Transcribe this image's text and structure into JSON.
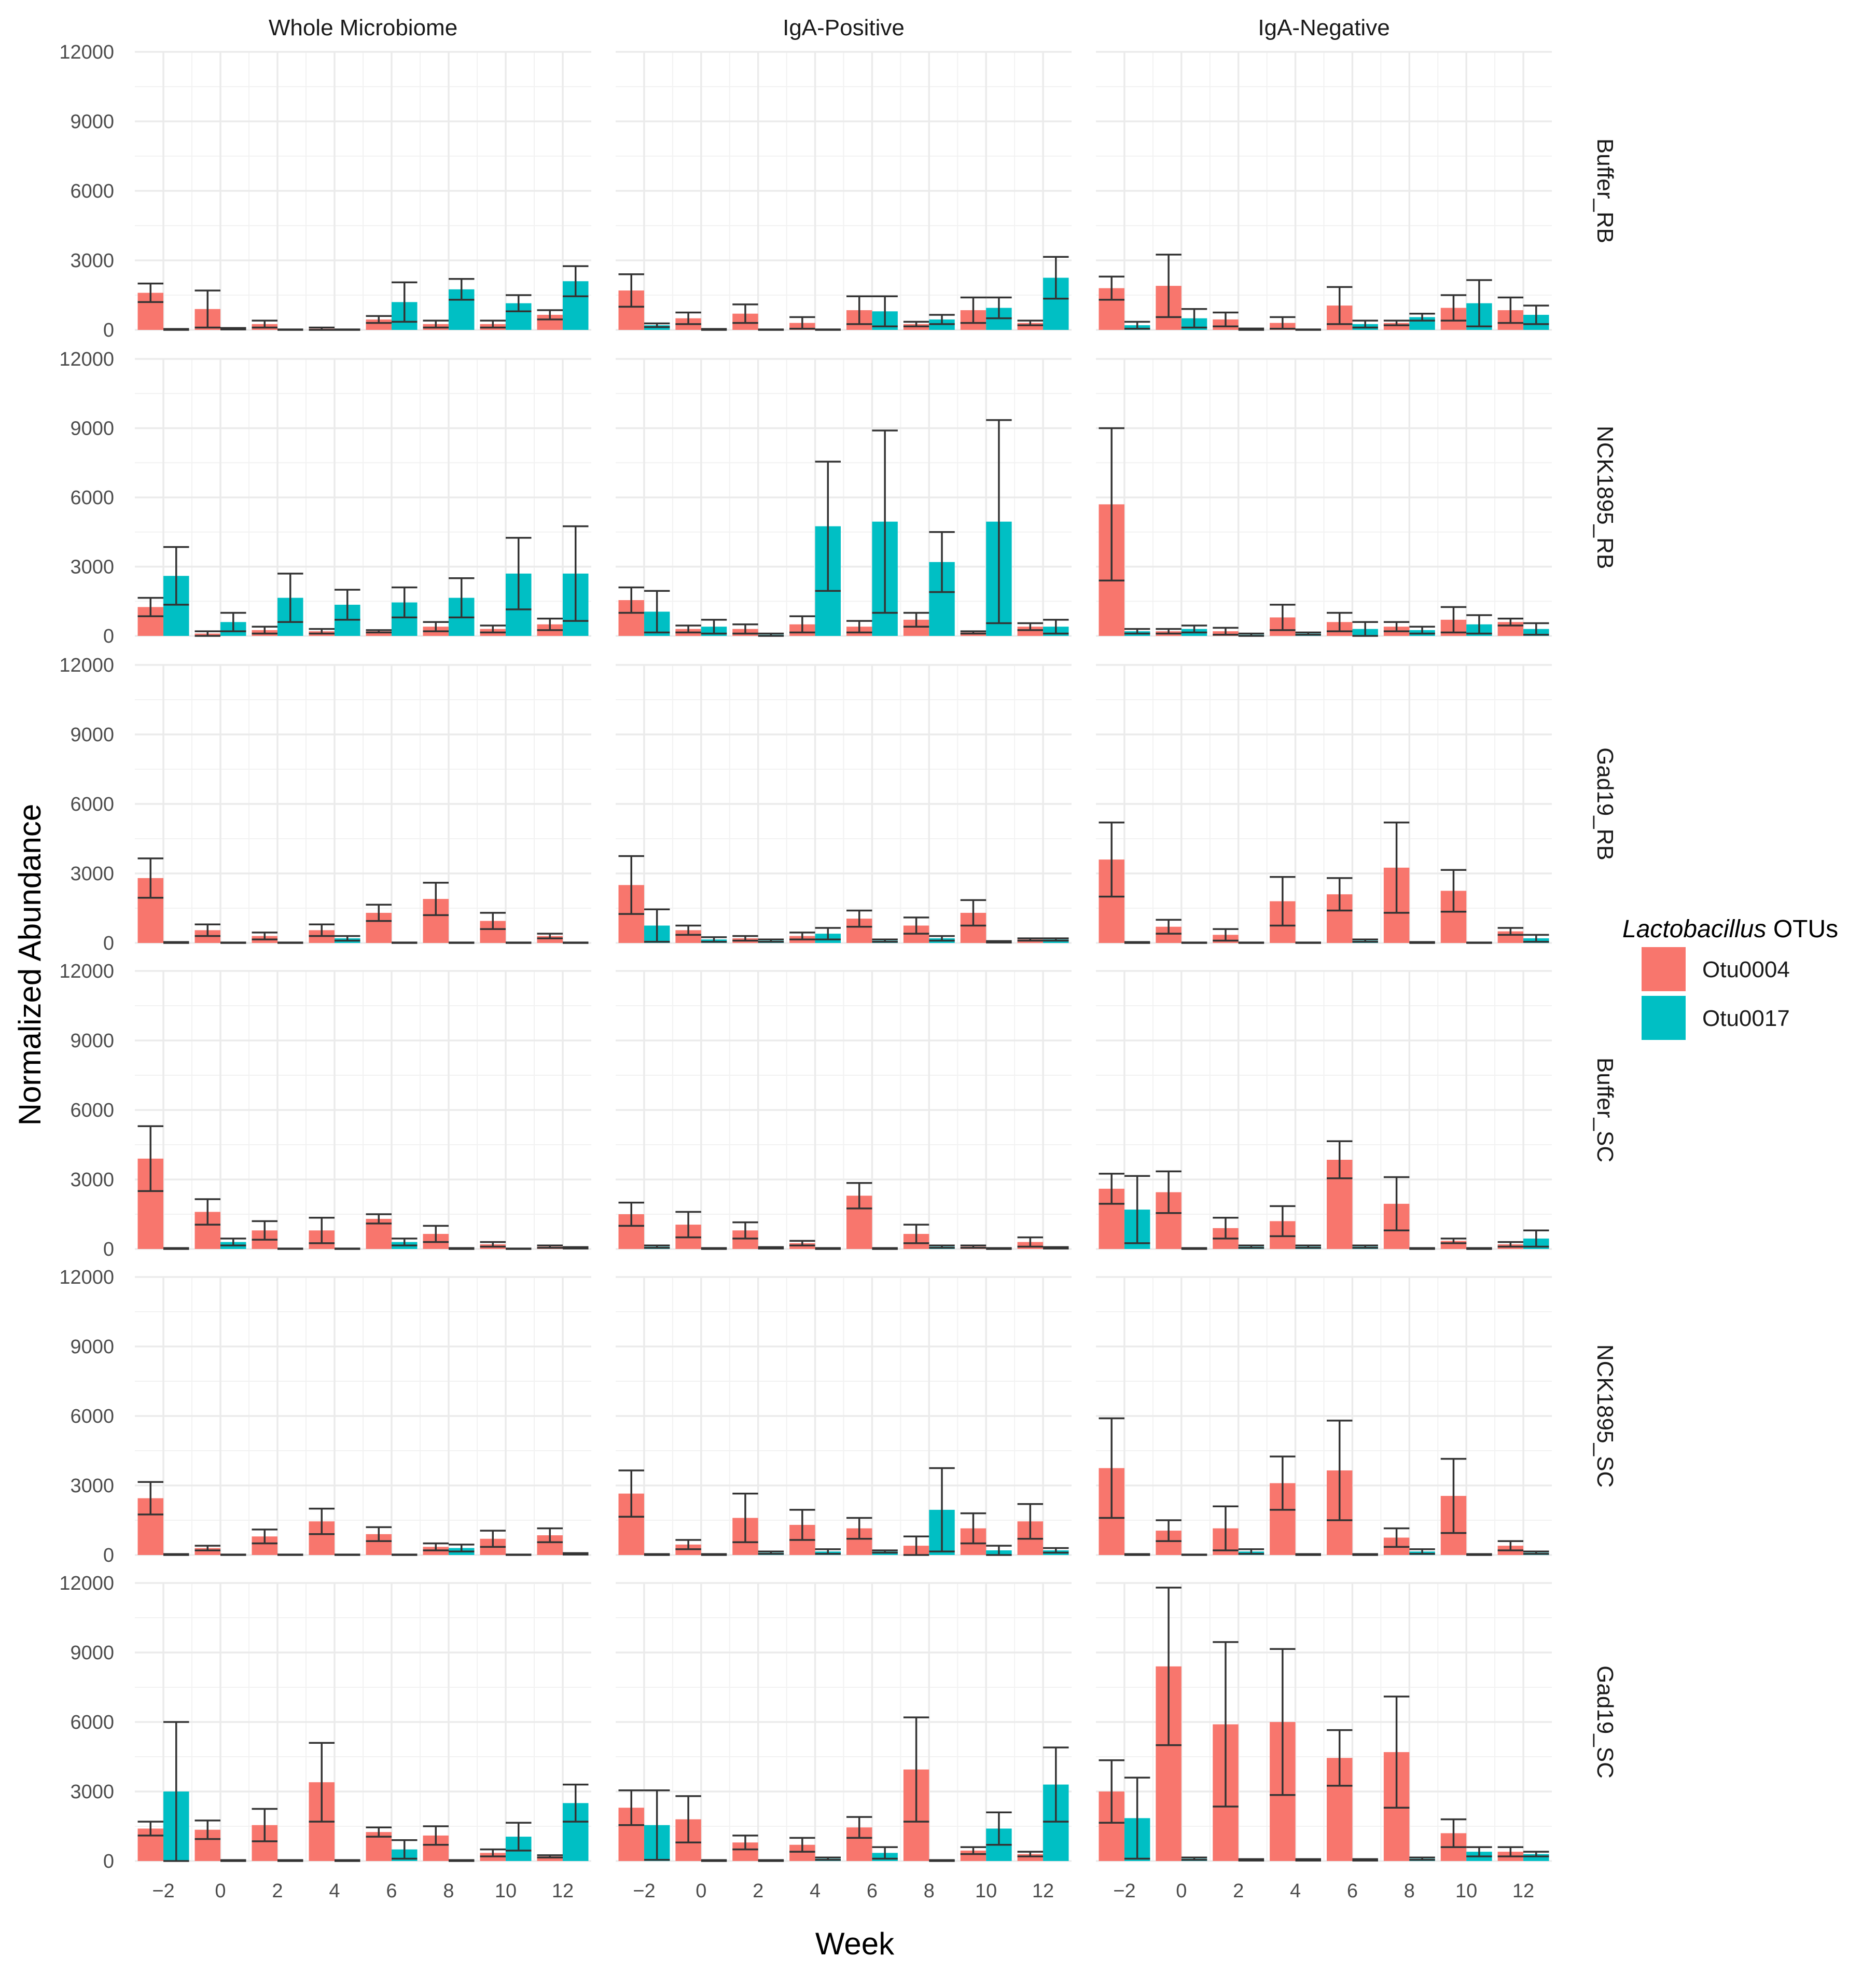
{
  "chart_data": {
    "type": "bar",
    "xlabel": "Week",
    "ylabel": "Normalized Abundance",
    "ylim": [
      0,
      12000
    ],
    "yticks": [
      0,
      3000,
      6000,
      9000,
      12000
    ],
    "ytick_labels": [
      "0",
      "3000",
      "6000",
      "9000",
      "12000"
    ],
    "categories": [
      -2,
      0,
      2,
      4,
      6,
      8,
      10,
      12
    ],
    "xtick_labels": [
      "−2",
      "0",
      "2",
      "4",
      "6",
      "8",
      "10",
      "12"
    ],
    "grid": true,
    "legend": {
      "title_italic": "Lactobacillus",
      "title_rest": " OTUs",
      "position": "right",
      "entries": [
        {
          "name": "Otu0004",
          "color": "#F8766D"
        },
        {
          "name": "Otu0017",
          "color": "#00BFC4"
        }
      ]
    },
    "columns": [
      "Whole Microbiome",
      "IgA-Positive",
      "IgA-Negative"
    ],
    "rows": [
      "Buffer_RB",
      "NCK1895_RB",
      "Gad19_RB",
      "Buffer_SC",
      "NCK1895_SC",
      "Gad19_SC"
    ],
    "panels": [
      [
        {
          "Otu0004": {
            "values": [
              1600,
              900,
              250,
              50,
              450,
              250,
              250,
              650
            ],
            "errors": [
              400,
              800,
              150,
              50,
              150,
              150,
              150,
              200
            ]
          },
          "Otu0017": {
            "values": [
              20,
              50,
              10,
              10,
              1200,
              1750,
              1150,
              2100
            ],
            "errors": [
              20,
              30,
              10,
              10,
              850,
              450,
              350,
              650
            ]
          }
        },
        {
          "Otu0004": {
            "values": [
              1700,
              500,
              700,
              300,
              850,
              250,
              850,
              300
            ],
            "errors": [
              700,
              250,
              400,
              250,
              600,
              100,
              550,
              100
            ]
          },
          "Otu0017": {
            "values": [
              200,
              20,
              10,
              10,
              800,
              450,
              950,
              2250
            ],
            "errors": [
              80,
              20,
              10,
              10,
              650,
              200,
              450,
              900
            ]
          }
        },
        {
          "Otu0004": {
            "values": [
              1800,
              1900,
              450,
              300,
              1050,
              300,
              950,
              850
            ],
            "errors": [
              500,
              1350,
              300,
              250,
              800,
              100,
              550,
              550
            ]
          },
          "Otu0017": {
            "values": [
              200,
              500,
              30,
              10,
              250,
              550,
              1150,
              650
            ],
            "errors": [
              150,
              400,
              30,
              10,
              150,
              150,
              1000,
              400
            ]
          }
        }
      ],
      [
        {
          "Otu0004": {
            "values": [
              1250,
              100,
              250,
              200,
              200,
              400,
              300,
              500
            ],
            "errors": [
              400,
              100,
              150,
              100,
              50,
              200,
              150,
              250
            ]
          },
          "Otu0017": {
            "values": [
              2600,
              600,
              1650,
              1350,
              1450,
              1650,
              2700,
              2700
            ],
            "errors": [
              1250,
              400,
              1050,
              650,
              650,
              850,
              1550,
              2050
            ]
          }
        },
        {
          "Otu0004": {
            "values": [
              1550,
              300,
              300,
              500,
              400,
              700,
              150,
              400
            ],
            "errors": [
              550,
              150,
              200,
              350,
              250,
              300,
              50,
              150
            ]
          },
          "Otu0017": {
            "values": [
              1050,
              400,
              50,
              4750,
              4950,
              3200,
              4950,
              400
            ],
            "errors": [
              900,
              300,
              50,
              2800,
              3950,
              1300,
              4400,
              300
            ]
          }
        },
        {
          "Otu0004": {
            "values": [
              5700,
              200,
              200,
              800,
              600,
              400,
              700,
              600
            ],
            "errors": [
              3300,
              100,
              150,
              550,
              400,
              200,
              550,
              150
            ]
          },
          "Otu0017": {
            "values": [
              200,
              300,
              50,
              100,
              300,
              250,
              500,
              300
            ],
            "errors": [
              100,
              150,
              50,
              50,
              300,
              150,
              400,
              250
            ]
          }
        }
      ],
      [
        {
          "Otu0004": {
            "values": [
              2800,
              550,
              300,
              550,
              1300,
              1900,
              950,
              300
            ],
            "errors": [
              850,
              250,
              150,
              250,
              350,
              700,
              350,
              100
            ]
          },
          "Otu0017": {
            "values": [
              20,
              10,
              10,
              200,
              10,
              10,
              10,
              10
            ],
            "errors": [
              20,
              10,
              10,
              100,
              10,
              10,
              10,
              10
            ]
          }
        },
        {
          "Otu0004": {
            "values": [
              2500,
              550,
              200,
              300,
              1050,
              750,
              1300,
              150
            ],
            "errors": [
              1250,
              200,
              100,
              150,
              350,
              350,
              550,
              50
            ]
          },
          "Otu0017": {
            "values": [
              750,
              150,
              100,
              400,
              100,
              200,
              50,
              150
            ],
            "errors": [
              700,
              100,
              50,
              250,
              50,
              100,
              30,
              50
            ]
          }
        },
        {
          "Otu0004": {
            "values": [
              3600,
              700,
              350,
              1800,
              2100,
              3250,
              2250,
              500
            ],
            "errors": [
              1600,
              300,
              250,
              1050,
              700,
              1950,
              900,
              150
            ]
          },
          "Otu0017": {
            "values": [
              20,
              10,
              10,
              10,
              100,
              20,
              10,
              200
            ],
            "errors": [
              20,
              10,
              10,
              10,
              50,
              20,
              10,
              150
            ]
          }
        }
      ],
      [
        {
          "Otu0004": {
            "values": [
              3900,
              1600,
              800,
              800,
              1300,
              650,
              200,
              100
            ],
            "errors": [
              1400,
              550,
              400,
              550,
              200,
              350,
              100,
              50
            ]
          },
          "Otu0017": {
            "values": [
              20,
              300,
              10,
              10,
              300,
              20,
              10,
              50
            ],
            "errors": [
              20,
              150,
              10,
              10,
              150,
              20,
              10,
              30
            ]
          }
        },
        {
          "Otu0004": {
            "values": [
              1500,
              1050,
              800,
              250,
              2300,
              650,
              100,
              300
            ],
            "errors": [
              500,
              550,
              350,
              100,
              550,
              400,
              50,
              200
            ]
          },
          "Otu0017": {
            "values": [
              100,
              20,
              50,
              20,
              20,
              100,
              20,
              50
            ],
            "errors": [
              50,
              20,
              30,
              20,
              20,
              50,
              20,
              30
            ]
          }
        },
        {
          "Otu0004": {
            "values": [
              2600,
              2450,
              900,
              1200,
              3850,
              1950,
              350,
              200
            ],
            "errors": [
              650,
              900,
              450,
              650,
              800,
              1150,
              100,
              100
            ]
          },
          "Otu0017": {
            "values": [
              1700,
              20,
              100,
              100,
              100,
              20,
              20,
              450
            ],
            "errors": [
              1450,
              20,
              50,
              50,
              50,
              20,
              20,
              350
            ]
          }
        }
      ],
      [
        {
          "Otu0004": {
            "values": [
              2450,
              300,
              800,
              1450,
              900,
              350,
              700,
              850
            ],
            "errors": [
              700,
              100,
              300,
              550,
              300,
              150,
              350,
              300
            ]
          },
          "Otu0017": {
            "values": [
              20,
              10,
              10,
              10,
              10,
              300,
              10,
              50
            ],
            "errors": [
              20,
              10,
              10,
              10,
              10,
              150,
              10,
              30
            ]
          }
        },
        {
          "Otu0004": {
            "values": [
              2650,
              450,
              1600,
              1300,
              1150,
              400,
              1150,
              1450
            ],
            "errors": [
              1000,
              200,
              1050,
              650,
              450,
              400,
              650,
              750
            ]
          },
          "Otu0017": {
            "values": [
              20,
              20,
              100,
              150,
              150,
              1950,
              200,
              200
            ],
            "errors": [
              20,
              20,
              50,
              100,
              50,
              1800,
              200,
              100
            ]
          }
        },
        {
          "Otu0004": {
            "values": [
              3750,
              1050,
              1150,
              3100,
              3650,
              750,
              2550,
              400
            ],
            "errors": [
              2150,
              450,
              950,
              1150,
              2150,
              400,
              1600,
              200
            ]
          },
          "Otu0017": {
            "values": [
              20,
              10,
              150,
              20,
              20,
              150,
              20,
              100
            ],
            "errors": [
              20,
              10,
              100,
              20,
              20,
              100,
              20,
              50
            ]
          }
        }
      ],
      [
        {
          "Otu0004": {
            "values": [
              1400,
              1350,
              1550,
              3400,
              1250,
              1100,
              350,
              200
            ],
            "errors": [
              300,
              400,
              700,
              1700,
              200,
              400,
              150,
              50
            ]
          },
          "Otu0017": {
            "values": [
              3000,
              20,
              20,
              20,
              500,
              20,
              1050,
              2500
            ],
            "errors": [
              3000,
              20,
              20,
              20,
              400,
              20,
              600,
              800
            ]
          }
        },
        {
          "Otu0004": {
            "values": [
              2300,
              1800,
              800,
              700,
              1450,
              3950,
              450,
              300
            ],
            "errors": [
              750,
              1000,
              300,
              300,
              450,
              2250,
              150,
              100
            ]
          },
          "Otu0017": {
            "values": [
              1550,
              20,
              20,
              100,
              350,
              20,
              1400,
              3300
            ],
            "errors": [
              1500,
              20,
              20,
              50,
              250,
              20,
              700,
              1600
            ]
          }
        },
        {
          "Otu0004": {
            "values": [
              3000,
              8400,
              5900,
              6000,
              4450,
              4700,
              1200,
              400
            ],
            "errors": [
              1350,
              3400,
              3550,
              3150,
              1200,
              2400,
              600,
              200
            ]
          },
          "Otu0017": {
            "values": [
              1850,
              100,
              50,
              50,
              50,
              100,
              400,
              300
            ],
            "errors": [
              1750,
              50,
              30,
              30,
              30,
              50,
              200,
              100
            ]
          }
        }
      ]
    ]
  }
}
